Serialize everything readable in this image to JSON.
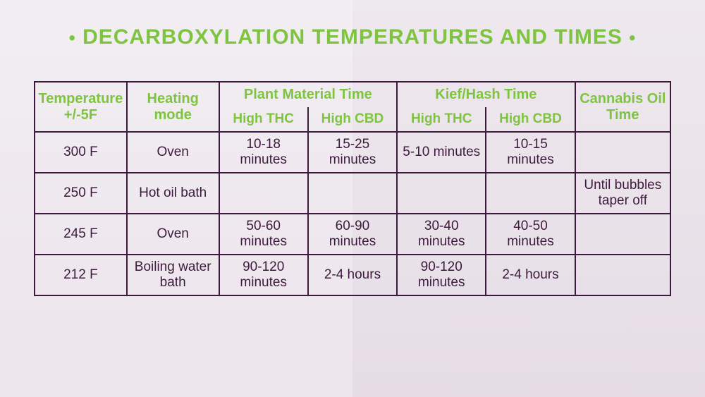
{
  "title": "DECARBOXYLATION TEMPERATURES AND TIMES",
  "colors": {
    "accent": "#7fc440",
    "border": "#3d1a3d",
    "text": "#3d1a3d",
    "bg_left_top": "#f2eef2",
    "bg_left_bottom": "#ece5ec",
    "bg_right_top": "#eee9ee",
    "bg_right_bottom": "#e6dde6"
  },
  "table": {
    "type": "table",
    "border_color": "#3d1a3d",
    "border_width": 2,
    "header_color": "#7fc440",
    "header_fontsize": 20,
    "cell_color": "#3d1a3d",
    "cell_fontsize": 19,
    "columns": [
      {
        "key": "temp",
        "label": "Temperature +/-5F",
        "rowspan": 2,
        "width_pct": 14.5
      },
      {
        "key": "mode",
        "label": "Heating mode",
        "rowspan": 2,
        "width_pct": 14.5
      },
      {
        "key": "plant",
        "label": "Plant Material Time",
        "colspan": 2,
        "sub": [
          {
            "key": "plant_thc",
            "label": "High THC",
            "width_pct": 14
          },
          {
            "key": "plant_cbd",
            "label": "High CBD",
            "width_pct": 14
          }
        ]
      },
      {
        "key": "kief",
        "label": "Kief/Hash Time",
        "colspan": 2,
        "sub": [
          {
            "key": "kief_thc",
            "label": "High THC",
            "width_pct": 14
          },
          {
            "key": "kief_cbd",
            "label": "High CBD",
            "width_pct": 14
          }
        ]
      },
      {
        "key": "oil",
        "label": "Cannabis Oil Time",
        "rowspan": 2,
        "width_pct": 15
      }
    ],
    "rows": [
      {
        "temp": "300 F",
        "mode": "Oven",
        "plant_thc": "10-18 minutes",
        "plant_cbd": "15-25 minutes",
        "kief_thc": "5-10 minutes",
        "kief_cbd": "10-15 minutes",
        "oil": ""
      },
      {
        "temp": "250 F",
        "mode": "Hot oil bath",
        "plant_thc": "",
        "plant_cbd": "",
        "kief_thc": "",
        "kief_cbd": "",
        "oil": "Until bubbles taper off"
      },
      {
        "temp": "245 F",
        "mode": "Oven",
        "plant_thc": "50-60 minutes",
        "plant_cbd": "60-90 minutes",
        "kief_thc": "30-40 minutes",
        "kief_cbd": "40-50 minutes",
        "oil": ""
      },
      {
        "temp": "212 F",
        "mode": "Boiling water bath",
        "plant_thc": "90-120 minutes",
        "plant_cbd": "2-4 hours",
        "kief_thc": "90-120 minutes",
        "kief_cbd": "2-4 hours",
        "oil": ""
      }
    ]
  }
}
